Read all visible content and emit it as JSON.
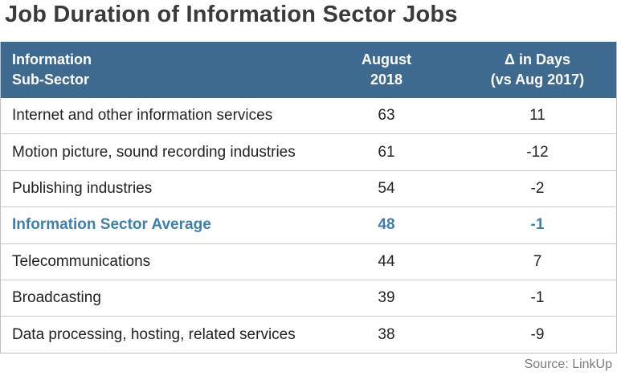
{
  "title": "Job Duration of Information Sector Jobs",
  "header": {
    "col1": [
      "Information",
      "Sub-Sector"
    ],
    "col2": [
      "August",
      "2018"
    ],
    "col3": [
      "Δ in Days",
      "(vs Aug 2017)"
    ]
  },
  "colors": {
    "header_bg": "#3d6a8e",
    "highlight_text": "#3d7fad"
  },
  "source": "Source: LinkUp",
  "chart_data": {
    "type": "table",
    "title": "Job Duration of Information Sector Jobs",
    "columns": [
      "Information Sub-Sector",
      "August 2018",
      "Δ in Days (vs Aug 2017)"
    ],
    "rows": [
      {
        "name": "Internet and other information services",
        "aug_2018": "63",
        "delta": "11",
        "highlight": false
      },
      {
        "name": "Motion picture, sound recording industries",
        "aug_2018": "61",
        "delta": "-12",
        "highlight": false
      },
      {
        "name": "Publishing industries",
        "aug_2018": "54",
        "delta": "-2",
        "highlight": false
      },
      {
        "name": "Information Sector Average",
        "aug_2018": "48",
        "delta": "-1",
        "highlight": true
      },
      {
        "name": "Telecommunications",
        "aug_2018": "44",
        "delta": "7",
        "highlight": false
      },
      {
        "name": "Broadcasting",
        "aug_2018": "39",
        "delta": "-1",
        "highlight": false
      },
      {
        "name": "Data processing, hosting, related services",
        "aug_2018": "38",
        "delta": "-9",
        "highlight": false
      }
    ],
    "source": "Source: LinkUp"
  }
}
